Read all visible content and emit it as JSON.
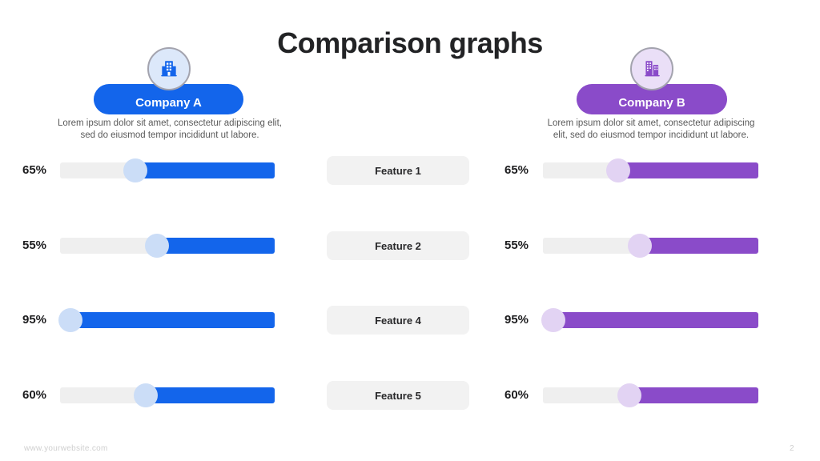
{
  "title": "Comparison graphs",
  "companies": {
    "a": {
      "name": "Company A",
      "description_line1": "Lorem ipsum dolor sit amet, consectetur adipiscing elit,",
      "description_line2": "sed do eiusmod tempor incididunt ut labore.",
      "color": "#1365EB",
      "knob_color": "#CBDDF7",
      "icon_bg": "#DCE8FA",
      "icon": "office-building-icon"
    },
    "b": {
      "name": "Company B",
      "description_line1": "Lorem ipsum dolor sit amet, consectetur adipiscing",
      "description_line2": "elit, sed do eiusmod tempor incididunt ut labore.",
      "color": "#8A4BC9",
      "knob_color": "#E2D3F3",
      "icon_bg": "#EADFF7",
      "icon": "city-buildings-icon"
    }
  },
  "track_color": "#EFEFEF",
  "rows": [
    {
      "feature": "Feature 1",
      "a": {
        "label": "65%",
        "value": 65
      },
      "b": {
        "label": "65%",
        "value": 65
      }
    },
    {
      "feature": "Feature 2",
      "a": {
        "label": "55%",
        "value": 55
      },
      "b": {
        "label": "55%",
        "value": 55
      }
    },
    {
      "feature": "Feature 4",
      "a": {
        "label": "95%",
        "value": 95
      },
      "b": {
        "label": "95%",
        "value": 95
      }
    },
    {
      "feature": "Feature 5",
      "a": {
        "label": "60%",
        "value": 60
      },
      "b": {
        "label": "60%",
        "value": 60
      }
    }
  ],
  "footer": {
    "website": "www.yourwebsite.com",
    "page": "2"
  },
  "chart_data": {
    "type": "bar",
    "title": "Comparison graphs",
    "categories": [
      "Feature 1",
      "Feature 2",
      "Feature 4",
      "Feature 5"
    ],
    "series": [
      {
        "name": "Company A",
        "values": [
          65,
          55,
          95,
          60
        ],
        "color": "#1365EB"
      },
      {
        "name": "Company B",
        "values": [
          65,
          55,
          95,
          60
        ],
        "color": "#8A4BC9"
      }
    ],
    "value_format": "percent",
    "xlim": [
      0,
      100
    ],
    "orientation": "horizontal",
    "legend_position": "top",
    "grid": false
  }
}
